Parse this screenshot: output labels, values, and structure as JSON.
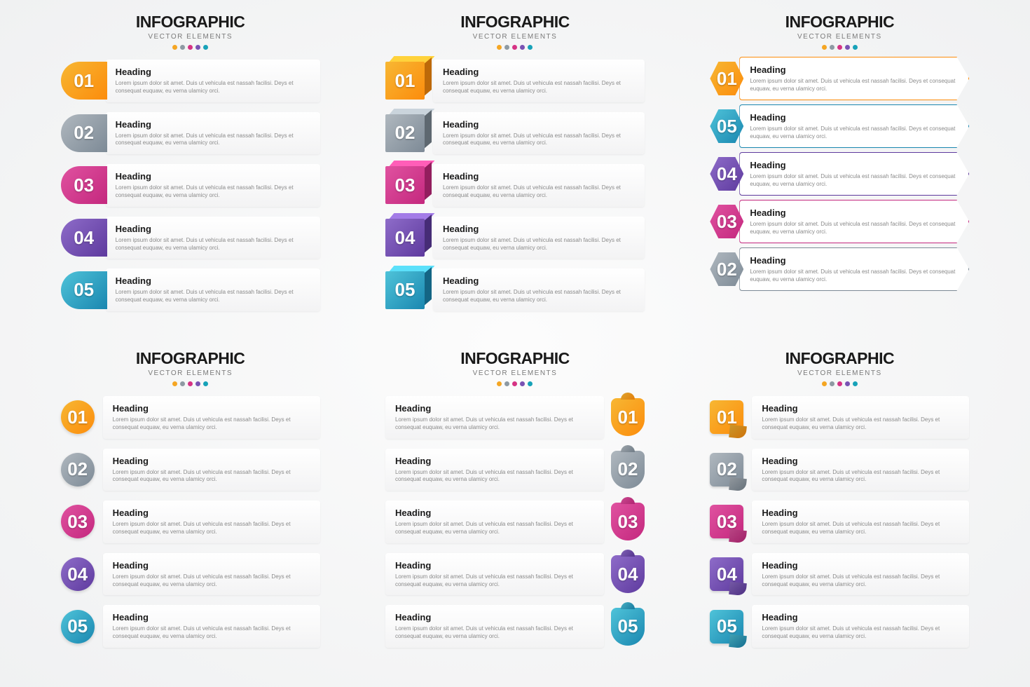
{
  "title": "INFOGRAPHIC",
  "subtitle": "VECTOR ELEMENTS",
  "heading_label": "Heading",
  "body_text": "Lorem ipsum dolor sit amet. Duis ut vehicula est nassah facilisi. Deys et consequat euquaw, eu verna ulamicy orci.",
  "dot_colors": [
    "#f5a623",
    "#8e9aa3",
    "#d63384",
    "#7952b3",
    "#17a2b8"
  ],
  "palette": [
    {
      "num": "01",
      "c1": "#f7b733",
      "c2": "#fc8c0c"
    },
    {
      "num": "02",
      "c1": "#b0b8bf",
      "c2": "#7d8a96"
    },
    {
      "num": "03",
      "c1": "#e052a0",
      "c2": "#c4287e"
    },
    {
      "num": "04",
      "c1": "#8e6cc9",
      "c2": "#5e3a9e"
    },
    {
      "num": "05",
      "c1": "#4fc3d9",
      "c2": "#1a87b0"
    }
  ],
  "units": [
    {
      "style": "a",
      "order": [
        0,
        1,
        2,
        3,
        4
      ]
    },
    {
      "style": "b",
      "order": [
        0,
        1,
        2,
        3,
        4
      ]
    },
    {
      "style": "c",
      "order": [
        0,
        4,
        3,
        2,
        1
      ]
    },
    {
      "style": "d",
      "order": [
        0,
        1,
        2,
        3,
        4
      ]
    },
    {
      "style": "e",
      "order": [
        0,
        1,
        2,
        3,
        4
      ]
    },
    {
      "style": "f",
      "order": [
        0,
        1,
        2,
        3,
        4
      ]
    }
  ],
  "background": "#f4f5f6",
  "card_bg": "#ffffff",
  "heading_color": "#1a1a1a",
  "body_color": "#8a8a8a"
}
